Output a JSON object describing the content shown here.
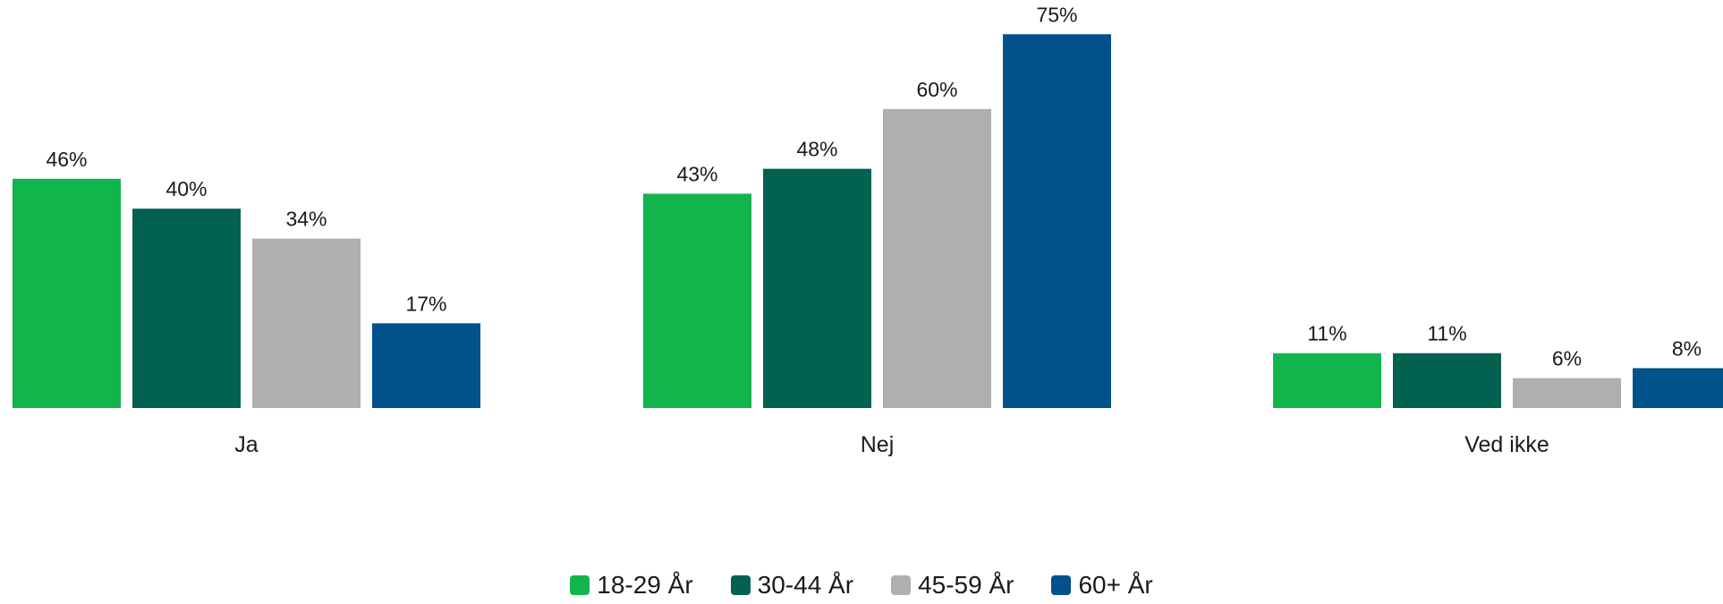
{
  "chart_data": {
    "type": "bar",
    "categories": [
      "Ja",
      "Nej",
      "Ved ikke"
    ],
    "series": [
      {
        "name": "18-29 År",
        "color": "#12b44c",
        "values": [
          46,
          43,
          11
        ]
      },
      {
        "name": "30-44 År",
        "color": "#036152",
        "values": [
          40,
          48,
          11
        ]
      },
      {
        "name": "45-59 År",
        "color": "#afafaf",
        "values": [
          34,
          60,
          6
        ]
      },
      {
        "name": "60+ År",
        "color": "#01518a",
        "values": [
          17,
          75,
          8
        ]
      }
    ],
    "value_suffix": "%",
    "ylim": [
      0,
      80
    ],
    "grid": false,
    "legend_position": "bottom"
  }
}
